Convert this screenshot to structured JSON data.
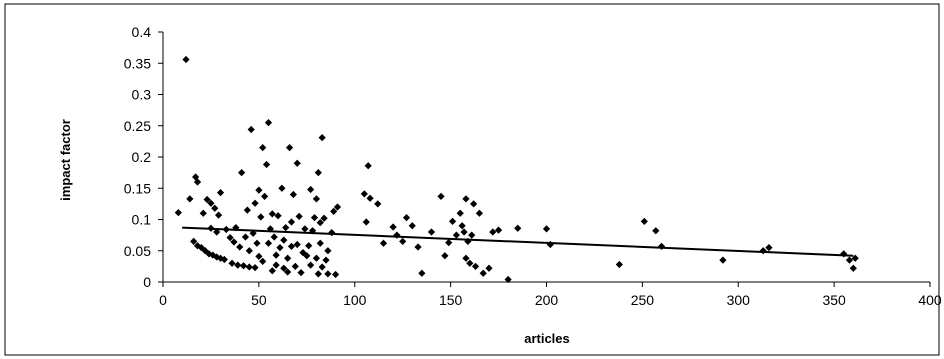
{
  "chart_data": {
    "type": "scatter",
    "title": "",
    "xlabel": "articles",
    "ylabel": "impact factor",
    "xlim": [
      0,
      400
    ],
    "ylim": [
      0,
      0.4
    ],
    "x_ticks": [
      "0",
      "50",
      "100",
      "150",
      "200",
      "250",
      "300",
      "350",
      "400"
    ],
    "y_ticks": [
      "0",
      "0.05",
      "0.1",
      "0.15",
      "0.2",
      "0.25",
      "0.3",
      "0.35",
      "0.4"
    ],
    "grid": false,
    "legend": "none",
    "marker": "diamond",
    "marker_color": "#000000",
    "trendline": {
      "type": "linear",
      "from": [
        10,
        0.087
      ],
      "to": [
        360,
        0.042
      ]
    },
    "series": [
      {
        "points": [
          [
            8,
            0.111
          ],
          [
            12,
            0.356
          ],
          [
            14,
            0.133
          ],
          [
            16,
            0.065
          ],
          [
            17,
            0.168
          ],
          [
            18,
            0.058
          ],
          [
            18,
            0.16
          ],
          [
            20,
            0.055
          ],
          [
            21,
            0.11
          ],
          [
            22,
            0.05
          ],
          [
            23,
            0.132
          ],
          [
            24,
            0.045
          ],
          [
            25,
            0.126
          ],
          [
            25,
            0.086
          ],
          [
            26,
            0.043
          ],
          [
            27,
            0.118
          ],
          [
            28,
            0.04
          ],
          [
            28,
            0.08
          ],
          [
            29,
            0.107
          ],
          [
            30,
            0.038
          ],
          [
            30,
            0.143
          ],
          [
            32,
            0.036
          ],
          [
            33,
            0.084
          ],
          [
            35,
            0.071
          ],
          [
            36,
            0.03
          ],
          [
            37,
            0.064
          ],
          [
            38,
            0.087
          ],
          [
            39,
            0.027
          ],
          [
            40,
            0.056
          ],
          [
            41,
            0.175
          ],
          [
            42,
            0.026
          ],
          [
            43,
            0.072
          ],
          [
            44,
            0.115
          ],
          [
            45,
            0.024
          ],
          [
            45,
            0.05
          ],
          [
            46,
            0.244
          ],
          [
            47,
            0.078
          ],
          [
            48,
            0.023
          ],
          [
            48,
            0.126
          ],
          [
            49,
            0.062
          ],
          [
            50,
            0.041
          ],
          [
            50,
            0.147
          ],
          [
            51,
            0.104
          ],
          [
            52,
            0.033
          ],
          [
            52,
            0.215
          ],
          [
            53,
            0.137
          ],
          [
            54,
            0.188
          ],
          [
            55,
            0.062
          ],
          [
            55,
            0.255
          ],
          [
            56,
            0.085
          ],
          [
            57,
            0.018
          ],
          [
            57,
            0.109
          ],
          [
            58,
            0.072
          ],
          [
            59,
            0.027
          ],
          [
            59,
            0.043
          ],
          [
            60,
            0.106
          ],
          [
            61,
            0.055
          ],
          [
            62,
            0.15
          ],
          [
            63,
            0.022
          ],
          [
            63,
            0.067
          ],
          [
            64,
            0.087
          ],
          [
            65,
            0.016
          ],
          [
            65,
            0.038
          ],
          [
            66,
            0.215
          ],
          [
            67,
            0.096
          ],
          [
            67,
            0.057
          ],
          [
            68,
            0.14
          ],
          [
            69,
            0.025
          ],
          [
            70,
            0.19
          ],
          [
            70,
            0.06
          ],
          [
            71,
            0.105
          ],
          [
            72,
            0.015
          ],
          [
            73,
            0.047
          ],
          [
            74,
            0.085
          ],
          [
            75,
            0.042
          ],
          [
            76,
            0.058
          ],
          [
            77,
            0.148
          ],
          [
            77,
            0.027
          ],
          [
            78,
            0.082
          ],
          [
            79,
            0.103
          ],
          [
            80,
            0.038
          ],
          [
            80,
            0.133
          ],
          [
            81,
            0.013
          ],
          [
            81,
            0.175
          ],
          [
            82,
            0.062
          ],
          [
            82,
            0.095
          ],
          [
            83,
            0.231
          ],
          [
            83,
            0.024
          ],
          [
            84,
            0.102
          ],
          [
            85,
            0.035
          ],
          [
            86,
            0.013
          ],
          [
            86,
            0.05
          ],
          [
            88,
            0.079
          ],
          [
            89,
            0.113
          ],
          [
            90,
            0.012
          ],
          [
            91,
            0.12
          ],
          [
            105,
            0.141
          ],
          [
            106,
            0.096
          ],
          [
            107,
            0.186
          ],
          [
            108,
            0.134
          ],
          [
            112,
            0.125
          ],
          [
            115,
            0.062
          ],
          [
            120,
            0.088
          ],
          [
            122,
            0.075
          ],
          [
            125,
            0.065
          ],
          [
            127,
            0.103
          ],
          [
            130,
            0.09
          ],
          [
            133,
            0.056
          ],
          [
            135,
            0.014
          ],
          [
            140,
            0.08
          ],
          [
            145,
            0.137
          ],
          [
            147,
            0.042
          ],
          [
            149,
            0.063
          ],
          [
            151,
            0.097
          ],
          [
            153,
            0.075
          ],
          [
            155,
            0.11
          ],
          [
            156,
            0.09
          ],
          [
            157,
            0.08
          ],
          [
            158,
            0.133
          ],
          [
            158,
            0.038
          ],
          [
            159,
            0.065
          ],
          [
            160,
            0.03
          ],
          [
            161,
            0.075
          ],
          [
            162,
            0.125
          ],
          [
            163,
            0.025
          ],
          [
            165,
            0.11
          ],
          [
            167,
            0.014
          ],
          [
            170,
            0.022
          ],
          [
            172,
            0.08
          ],
          [
            175,
            0.083
          ],
          [
            180,
            0.004
          ],
          [
            185,
            0.086
          ],
          [
            200,
            0.085
          ],
          [
            202,
            0.06
          ],
          [
            238,
            0.028
          ],
          [
            251,
            0.097
          ],
          [
            257,
            0.082
          ],
          [
            260,
            0.057
          ],
          [
            292,
            0.035
          ],
          [
            313,
            0.05
          ],
          [
            316,
            0.055
          ],
          [
            355,
            0.045
          ],
          [
            358,
            0.035
          ],
          [
            360,
            0.022
          ],
          [
            361,
            0.038
          ]
        ]
      }
    ]
  }
}
